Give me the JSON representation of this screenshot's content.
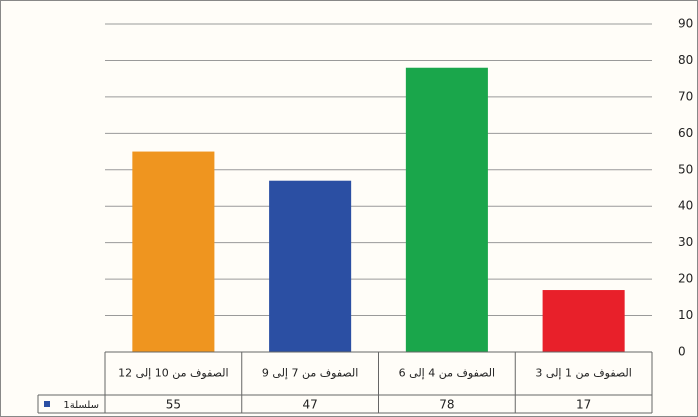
{
  "chart_data": {
    "type": "bar",
    "categories": [
      "الصفوف من 1 إلى 3",
      "الصفوف من 4 إلى 6",
      "الصفوف من 7 إلى 9",
      "الصفوف من 10 إلى 12"
    ],
    "series": [
      {
        "name": "سلسلة1",
        "color": "#2b4fa3",
        "values": [
          17,
          78,
          47,
          55
        ]
      }
    ],
    "bar_colors": [
      "#e8202a",
      "#1aa64b",
      "#2b4fa3",
      "#ef951f"
    ],
    "ylim": [
      0,
      90
    ],
    "yticks": [
      0,
      10,
      20,
      30,
      40,
      50,
      60,
      70,
      80,
      90
    ],
    "grid": true,
    "direction": "rtl",
    "data_table": true
  }
}
